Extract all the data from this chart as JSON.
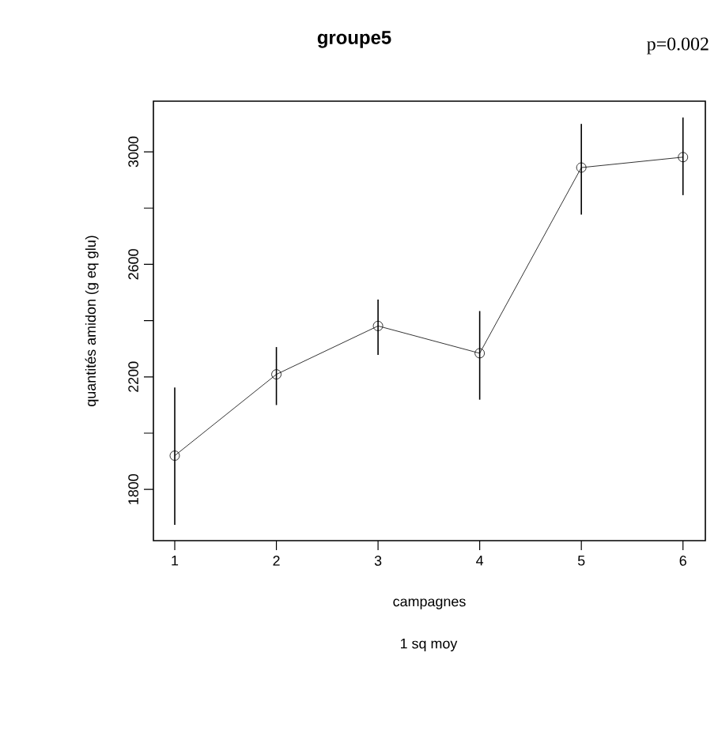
{
  "chart_data": {
    "type": "line",
    "title": "groupe5",
    "subtitle": "1 sq moy",
    "xlabel": "campagnes",
    "ylabel": "quantités amidon (g eq glu)",
    "annotations": [
      "p=0.002"
    ],
    "x": [
      1,
      2,
      3,
      4,
      5,
      6
    ],
    "values": [
      1920,
      2209,
      2381,
      2284,
      2944,
      2981
    ],
    "errors": [
      [
        1674,
        2162
      ],
      [
        2100,
        2306
      ],
      [
        2278,
        2475
      ],
      [
        2119,
        2434
      ],
      [
        2777,
        3099
      ],
      [
        2846,
        3122
      ]
    ],
    "color": "#000000",
    "marker": "circle",
    "line_style": "solid",
    "grid": false,
    "xlim": [
      0.79,
      6.22
    ],
    "ylim": [
      1618,
      3180
    ],
    "xticks": [
      1,
      2,
      3,
      4,
      5,
      6
    ],
    "yticks": [
      1800,
      {
        "value": 2000,
        "label": null
      },
      2200,
      {
        "value": 2400,
        "label": null
      },
      2600,
      {
        "value": 2800,
        "label": null
      },
      3000
    ]
  }
}
